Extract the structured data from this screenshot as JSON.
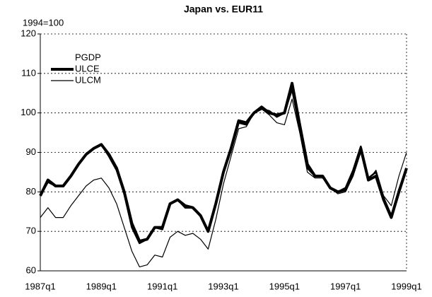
{
  "chart_data": {
    "type": "line",
    "title": "Japan vs. EUR11",
    "y_label": "1994=100",
    "categories": [
      "1987q1",
      null,
      null,
      null,
      null,
      null,
      null,
      null,
      "1989q1",
      null,
      null,
      null,
      null,
      null,
      null,
      null,
      "1991q1",
      null,
      null,
      null,
      null,
      null,
      null,
      null,
      "1993q1",
      null,
      null,
      null,
      null,
      null,
      null,
      null,
      "1995q1",
      null,
      null,
      null,
      null,
      null,
      null,
      null,
      "1997q1",
      null,
      null,
      null,
      null,
      null,
      null,
      null,
      "1999q1"
    ],
    "series": [
      {
        "name": "PGDP",
        "color": "#000000",
        "values": [
          79,
          82.5,
          81.5,
          81.5,
          84,
          87,
          89.5,
          91,
          92,
          89,
          85.5,
          79.5,
          71,
          67,
          68,
          71,
          70.5,
          77,
          78,
          76,
          76,
          74,
          70,
          77,
          85,
          90.5,
          97.5,
          97,
          100,
          101,
          100.5,
          99,
          100,
          106,
          96,
          86,
          84,
          84,
          81,
          80,
          81,
          85.5,
          91.5,
          83.5,
          85,
          78.5,
          74,
          80.5,
          86
        ]
      },
      {
        "name": "ULCE",
        "color": "#000000",
        "values": [
          79,
          83,
          81.5,
          81.5,
          84,
          87,
          89.5,
          91,
          92,
          89.5,
          86,
          80,
          72,
          67.5,
          68,
          71,
          71,
          77,
          78,
          76.5,
          76,
          74,
          70,
          77,
          85,
          91,
          98,
          97.5,
          100,
          101.5,
          100,
          99.5,
          100,
          107.5,
          97,
          87,
          84,
          84,
          81,
          80,
          80.5,
          85,
          91,
          83,
          84,
          78,
          73.5,
          80,
          86
        ]
      },
      {
        "name": "ULCM",
        "color": "#000000",
        "values": [
          73.5,
          76,
          73.5,
          73.5,
          76.5,
          79,
          81.5,
          83,
          83.5,
          81,
          77,
          71,
          65,
          61,
          61.5,
          64,
          63.5,
          68.5,
          70,
          69,
          69.5,
          68,
          65.5,
          73,
          82,
          89,
          96,
          96.5,
          100,
          101,
          99.5,
          97.5,
          97,
          103.5,
          95,
          85,
          83.5,
          83.5,
          81,
          79.5,
          80,
          84,
          90,
          83,
          85.5,
          79,
          76.5,
          84,
          90
        ]
      }
    ],
    "ylim": [
      60,
      120
    ],
    "yticks": [
      60,
      70,
      80,
      90,
      100,
      110,
      120
    ],
    "grid": true,
    "legend": "upper left"
  }
}
